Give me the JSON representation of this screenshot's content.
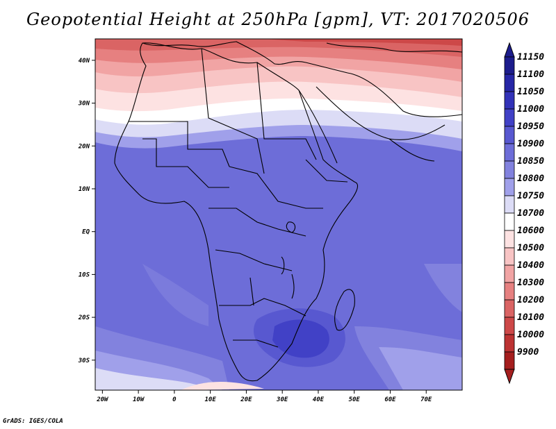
{
  "title": "Geopotential Height at 250hPa [gpm], VT: 2017020506",
  "credit": "GrADS: IGES/COLA",
  "map": {
    "projection": "latlon",
    "lon_range": [
      -22,
      80
    ],
    "lat_range": [
      -37,
      45
    ],
    "lon_ticks": [
      "20W",
      "10W",
      "0",
      "10E",
      "20E",
      "30E",
      "40E",
      "50E",
      "60E",
      "70E"
    ],
    "lat_ticks": [
      "40N",
      "30N",
      "20N",
      "10N",
      "EQ",
      "10S",
      "20S",
      "30S"
    ],
    "field": "geopotential height 250hPa",
    "units": "gpm"
  },
  "colorbar": {
    "levels": [
      "11150",
      "11100",
      "11050",
      "11000",
      "10950",
      "10900",
      "10850",
      "10800",
      "10750",
      "10700",
      "10600",
      "10500",
      "10400",
      "10300",
      "10200",
      "10100",
      "10000",
      "9900"
    ],
    "colors": [
      "#1c1c8c",
      "#2626a6",
      "#3232b8",
      "#4141c6",
      "#5858d0",
      "#6d6dd8",
      "#8282de",
      "#a0a0ea",
      "#dcdcf6",
      "#ffffff",
      "#fde2e2",
      "#f8c4c4",
      "#f1a4a4",
      "#e68080",
      "#da6464",
      "#cd4848",
      "#bc3232",
      "#a51e1e"
    ]
  }
}
